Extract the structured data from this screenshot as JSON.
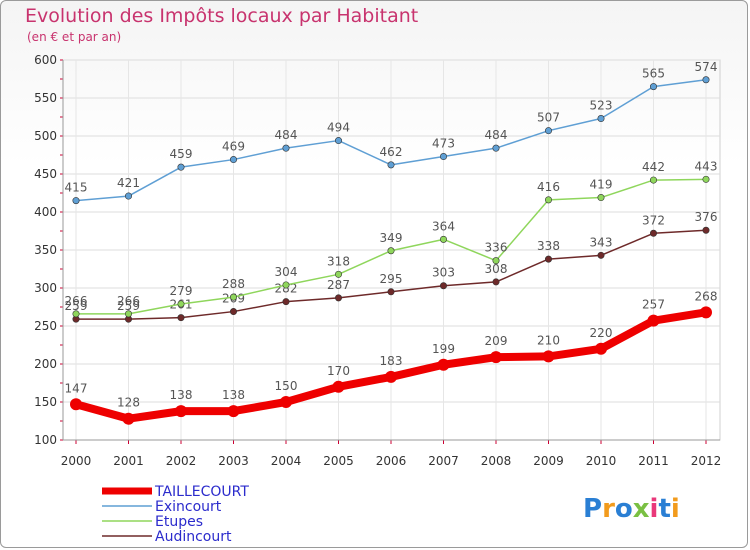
{
  "header": {
    "title": "Evolution des Impôts locaux par Habitant",
    "subtitle": "(en € et par an)"
  },
  "logo": {
    "text": "Proxiti"
  },
  "chart_data": {
    "type": "line",
    "title": "Evolution des Impôts locaux par Habitant",
    "subtitle": "(en € et par an)",
    "xlabel": "",
    "ylabel": "",
    "x": [
      "2000",
      "2001",
      "2002",
      "2003",
      "2004",
      "2005",
      "2006",
      "2007",
      "2008",
      "2009",
      "2010",
      "2011",
      "2012"
    ],
    "ylim": [
      100,
      600
    ],
    "yticks": [
      100,
      150,
      200,
      250,
      300,
      350,
      400,
      450,
      500,
      550,
      600
    ],
    "grid": true,
    "legend_position": "bottom-left",
    "series": [
      {
        "name": "TAILLECOURT",
        "color": "#ee0000",
        "values": [
          147,
          128,
          138,
          138,
          150,
          170,
          183,
          199,
          209,
          210,
          220,
          257,
          268
        ]
      },
      {
        "name": "Exincourt",
        "color": "#5f9fd4",
        "values": [
          415,
          421,
          459,
          469,
          484,
          494,
          462,
          473,
          484,
          507,
          523,
          565,
          574
        ]
      },
      {
        "name": "Etupes",
        "color": "#8fd65c",
        "values": [
          266,
          266,
          279,
          288,
          304,
          318,
          349,
          364,
          336,
          416,
          419,
          442,
          443
        ]
      },
      {
        "name": "Audincourt",
        "color": "#6e2a2a",
        "values": [
          259,
          259,
          261,
          269,
          282,
          287,
          295,
          303,
          308,
          338,
          343,
          372,
          376
        ]
      }
    ]
  }
}
